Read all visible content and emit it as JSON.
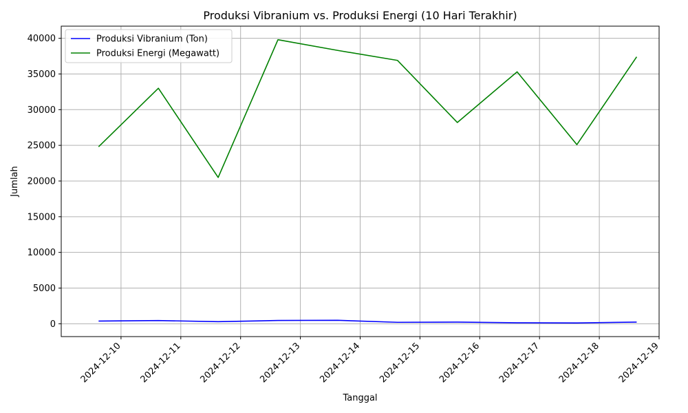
{
  "chart_data": {
    "type": "line",
    "title": "Produksi Vibranium vs. Produksi Energi (10 Hari Terakhir)",
    "xlabel": "Tanggal",
    "ylabel": "Jumlah",
    "x": [
      "2024-12-09 15:00",
      "2024-12-10 15:00",
      "2024-12-11 15:00",
      "2024-12-12 15:00",
      "2024-12-13 15:00",
      "2024-12-14 15:00",
      "2024-12-15 15:00",
      "2024-12-16 15:00",
      "2024-12-17 15:00",
      "2024-12-18 15:00"
    ],
    "xlim": [
      "2024-12-09 00:00",
      "2024-12-19 00:00"
    ],
    "x_ticks": [
      "2024-12-10",
      "2024-12-11",
      "2024-12-12",
      "2024-12-13",
      "2024-12-14",
      "2024-12-15",
      "2024-12-16",
      "2024-12-17",
      "2024-12-18",
      "2024-12-19"
    ],
    "ylim": [
      -1800,
      41700
    ],
    "y_ticks": [
      0,
      5000,
      10000,
      15000,
      20000,
      25000,
      30000,
      35000,
      40000
    ],
    "grid": true,
    "legend_position": "top-left",
    "series": [
      {
        "name": "Produksi Vibranium (Ton)",
        "color": "#0000ff",
        "values": [
          380,
          450,
          290,
          460,
          480,
          200,
          230,
          140,
          110,
          230
        ]
      },
      {
        "name": "Produksi Energi (Megawatt)",
        "color": "#008000",
        "values": [
          24800,
          33000,
          20500,
          39800,
          38300,
          36900,
          28200,
          35300,
          25100,
          37400
        ]
      }
    ]
  }
}
